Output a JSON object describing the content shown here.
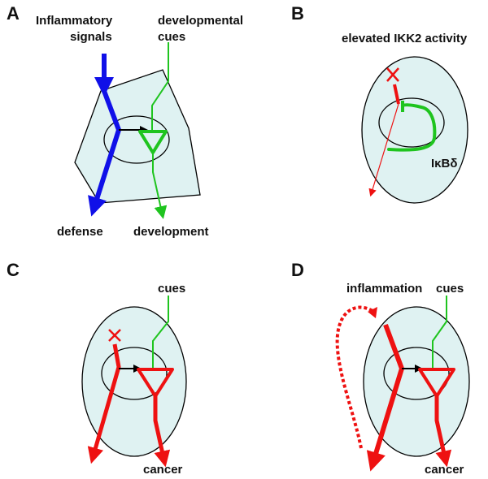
{
  "colors": {
    "cell_fill": "#dff2f2",
    "outline": "#000000",
    "blue": "#1010e8",
    "green": "#1fc41f",
    "red": "#ee1111",
    "black": "#000000"
  },
  "panels": {
    "a": {
      "letter": "A",
      "input_top": "Inflammatory",
      "input_bottom": "signals",
      "cue_top": "developmental",
      "cue_bottom": "cues",
      "out_left": "defense",
      "out_right": "development"
    },
    "b": {
      "letter": "B",
      "header": "elevated IKK2 activity",
      "inhibitor_base": "IκB",
      "inhibitor_sub": "δ"
    },
    "c": {
      "letter": "C",
      "cue": "cues",
      "out": "cancer"
    },
    "d": {
      "letter": "D",
      "side": "inflammation",
      "cue": "cues",
      "out": "cancer"
    }
  }
}
